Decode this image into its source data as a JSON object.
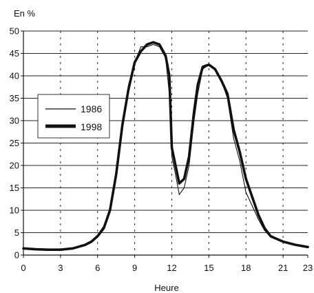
{
  "chart_data": {
    "type": "line",
    "ylabel": "En %",
    "xlabel": "Heure",
    "xlim": [
      0,
      23
    ],
    "ylim": [
      0,
      50
    ],
    "x_ticks": [
      0,
      3,
      6,
      9,
      12,
      15,
      18,
      21,
      23
    ],
    "y_ticks": [
      0,
      5,
      10,
      15,
      20,
      25,
      30,
      35,
      40,
      45,
      50
    ],
    "grid": {
      "horizontal": "solid",
      "vertical": "dashed"
    },
    "legend_position": "left-middle",
    "series": [
      {
        "name": "1986",
        "line_weight": "thin",
        "points": [
          [
            0,
            1.5
          ],
          [
            1,
            1.4
          ],
          [
            2,
            1.3
          ],
          [
            3,
            1.3
          ],
          [
            4,
            1.5
          ],
          [
            5,
            2.5
          ],
          [
            5.5,
            3.2
          ],
          [
            6,
            4.5
          ],
          [
            6.5,
            6.5
          ],
          [
            7,
            10.5
          ],
          [
            7.5,
            19
          ],
          [
            8,
            30
          ],
          [
            8.5,
            38
          ],
          [
            9,
            43
          ],
          [
            9.5,
            46.5
          ],
          [
            10,
            46.5
          ],
          [
            10.5,
            47
          ],
          [
            11,
            46.5
          ],
          [
            11.5,
            44
          ],
          [
            11.8,
            36
          ],
          [
            12,
            22
          ],
          [
            12.3,
            18
          ],
          [
            12.6,
            13.5
          ],
          [
            13,
            15
          ],
          [
            13.4,
            20
          ],
          [
            13.8,
            30
          ],
          [
            14.1,
            36
          ],
          [
            14.5,
            41.5
          ],
          [
            15,
            42.5
          ],
          [
            15.5,
            41.5
          ],
          [
            16,
            39
          ],
          [
            16.5,
            35
          ],
          [
            17,
            26
          ],
          [
            17.5,
            21
          ],
          [
            18,
            14
          ],
          [
            18.5,
            11
          ],
          [
            19,
            8
          ],
          [
            19.5,
            5.5
          ],
          [
            20,
            4
          ],
          [
            21,
            3
          ],
          [
            22,
            2.3
          ],
          [
            23,
            1.7
          ]
        ]
      },
      {
        "name": "1998",
        "line_weight": "thick",
        "points": [
          [
            0,
            1.5
          ],
          [
            1,
            1.3
          ],
          [
            2,
            1.2
          ],
          [
            3,
            1.2
          ],
          [
            4,
            1.5
          ],
          [
            5,
            2.3
          ],
          [
            5.5,
            3.0
          ],
          [
            6,
            4.2
          ],
          [
            6.5,
            6.0
          ],
          [
            7,
            10
          ],
          [
            7.5,
            18
          ],
          [
            8,
            29
          ],
          [
            8.5,
            37
          ],
          [
            9,
            43
          ],
          [
            9.5,
            45.5
          ],
          [
            10,
            47
          ],
          [
            10.5,
            47.5
          ],
          [
            11,
            47
          ],
          [
            11.5,
            44.5
          ],
          [
            11.8,
            40
          ],
          [
            12,
            24
          ],
          [
            12.3,
            20
          ],
          [
            12.6,
            16
          ],
          [
            13,
            17
          ],
          [
            13.4,
            22
          ],
          [
            13.8,
            32
          ],
          [
            14.1,
            38
          ],
          [
            14.5,
            42
          ],
          [
            15,
            42.5
          ],
          [
            15.5,
            41.5
          ],
          [
            16,
            39
          ],
          [
            16.5,
            36
          ],
          [
            17,
            28
          ],
          [
            17.5,
            23
          ],
          [
            18,
            17
          ],
          [
            18.5,
            13
          ],
          [
            19,
            9
          ],
          [
            19.5,
            6
          ],
          [
            20,
            4.2
          ],
          [
            21,
            3
          ],
          [
            22,
            2.3
          ],
          [
            23,
            1.8
          ]
        ]
      }
    ]
  }
}
